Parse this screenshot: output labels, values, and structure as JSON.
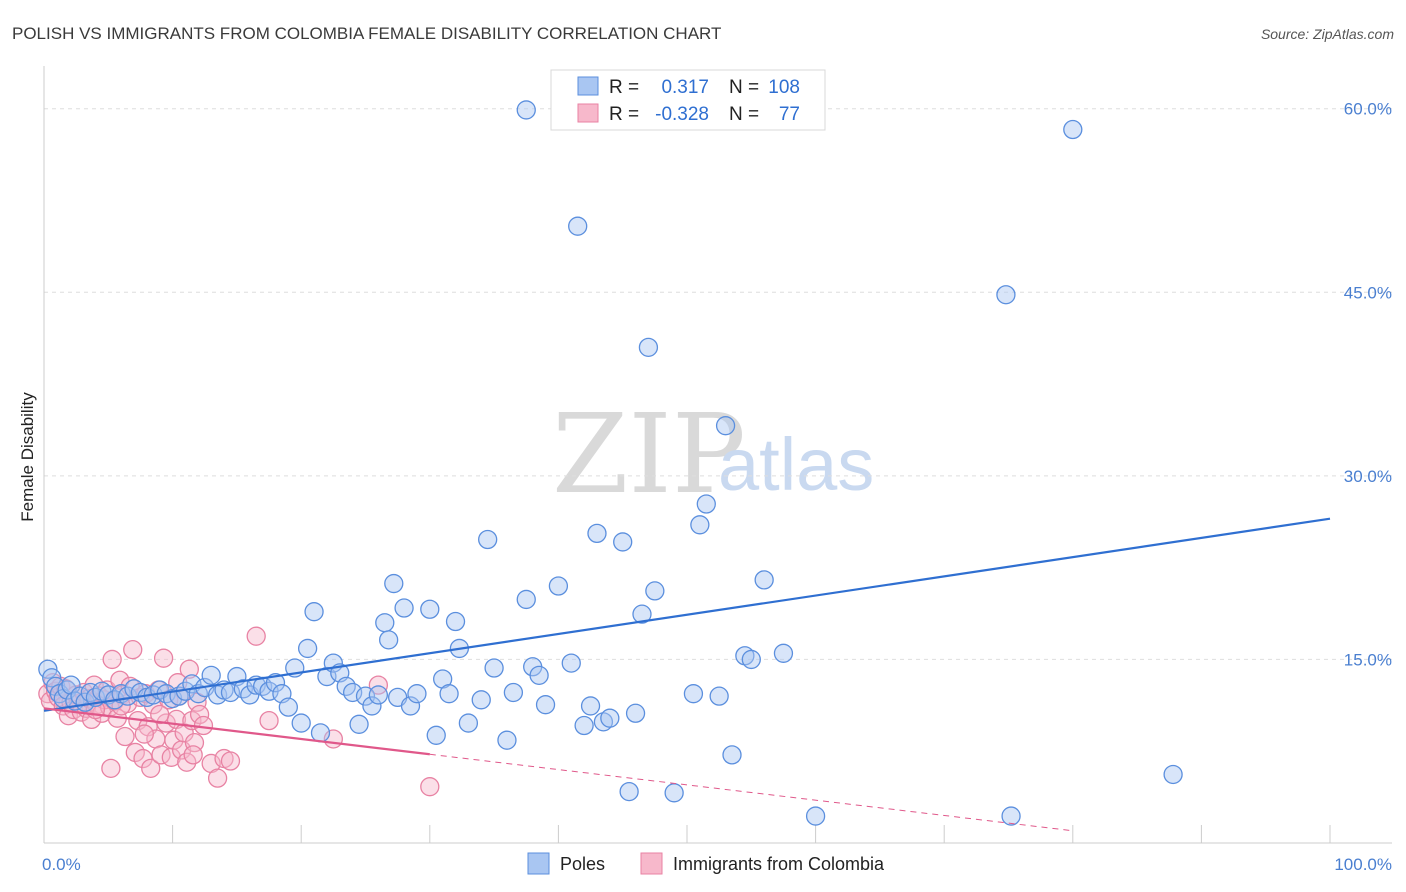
{
  "chart_data": {
    "type": "scatter",
    "title": "POLISH VS IMMIGRANTS FROM COLOMBIA FEMALE DISABILITY CORRELATION CHART",
    "source": "Source: ZipAtlas.com",
    "ylabel": "Female Disability",
    "xlim": [
      0,
      100
    ],
    "ylim": [
      0,
      63
    ],
    "x_ticks": [
      {
        "value": 0,
        "label": "0.0%"
      },
      {
        "value": 100,
        "label": "100.0%"
      }
    ],
    "y_ticks": [
      {
        "value": 15,
        "label": "15.0%"
      },
      {
        "value": 30,
        "label": "30.0%"
      },
      {
        "value": 45,
        "label": "45.0%"
      },
      {
        "value": 60,
        "label": "60.0%"
      }
    ],
    "grid": true,
    "legend_position": "bottom",
    "colors": {
      "poles_fill": "#a9c6f2",
      "poles_stroke": "#5b8fde",
      "poles_line": "#2f6fd1",
      "colombia_fill": "#f7b8cb",
      "colombia_stroke": "#e882a3",
      "colombia_line": "#e0588a",
      "grid": "#dedede",
      "axis": "#cccccc"
    },
    "stats": [
      {
        "series": "Poles",
        "r_label": "R =",
        "r_value": "0.317",
        "n_label": "N =",
        "n_value": "108"
      },
      {
        "series": "Immigrants from Colombia",
        "r_label": "R =",
        "r_value": "-0.328",
        "n_label": "N =",
        "n_value": "77"
      }
    ],
    "watermark": {
      "part1": "ZIP",
      "part2": "atlas"
    },
    "series": [
      {
        "name": "Poles",
        "trend": {
          "x": [
            0,
            100
          ],
          "y": [
            10.8,
            26.5
          ],
          "dashed_from": null
        },
        "points": [
          [
            0.3,
            14.2
          ],
          [
            0.6,
            13.5
          ],
          [
            0.9,
            12.8
          ],
          [
            1.2,
            12.2
          ],
          [
            1.5,
            11.8
          ],
          [
            1.8,
            12.5
          ],
          [
            2.1,
            12.9
          ],
          [
            2.4,
            11.6
          ],
          [
            2.8,
            12.0
          ],
          [
            3.2,
            11.5
          ],
          [
            3.6,
            12.3
          ],
          [
            4.0,
            11.9
          ],
          [
            4.5,
            12.4
          ],
          [
            5.0,
            12.1
          ],
          [
            5.5,
            11.7
          ],
          [
            6.0,
            12.2
          ],
          [
            6.5,
            12.0
          ],
          [
            7.0,
            12.6
          ],
          [
            7.5,
            12.3
          ],
          [
            8.0,
            11.9
          ],
          [
            8.5,
            12.1
          ],
          [
            9.0,
            12.5
          ],
          [
            9.5,
            12.2
          ],
          [
            10.0,
            11.8
          ],
          [
            10.5,
            12.0
          ],
          [
            11.0,
            12.4
          ],
          [
            11.5,
            13.0
          ],
          [
            12.0,
            12.2
          ],
          [
            12.5,
            12.7
          ],
          [
            13.0,
            13.7
          ],
          [
            13.5,
            12.1
          ],
          [
            14.0,
            12.5
          ],
          [
            14.5,
            12.3
          ],
          [
            15.0,
            13.6
          ],
          [
            15.5,
            12.6
          ],
          [
            16.0,
            12.1
          ],
          [
            16.5,
            12.9
          ],
          [
            17.0,
            12.8
          ],
          [
            17.5,
            12.4
          ],
          [
            18.0,
            13.1
          ],
          [
            18.5,
            12.2
          ],
          [
            19.0,
            11.1
          ],
          [
            19.5,
            14.3
          ],
          [
            20.0,
            9.8
          ],
          [
            20.5,
            15.9
          ],
          [
            21.0,
            18.9
          ],
          [
            21.5,
            9.0
          ],
          [
            22.0,
            13.6
          ],
          [
            22.5,
            14.7
          ],
          [
            23.0,
            13.9
          ],
          [
            23.5,
            12.8
          ],
          [
            24.0,
            12.3
          ],
          [
            24.5,
            9.7
          ],
          [
            25.0,
            12.0
          ],
          [
            25.5,
            11.2
          ],
          [
            26.0,
            12.1
          ],
          [
            26.5,
            18.0
          ],
          [
            26.8,
            16.6
          ],
          [
            27.2,
            21.2
          ],
          [
            27.5,
            11.9
          ],
          [
            28.0,
            19.2
          ],
          [
            28.5,
            11.2
          ],
          [
            29.0,
            12.2
          ],
          [
            30.0,
            19.1
          ],
          [
            30.5,
            8.8
          ],
          [
            31.0,
            13.4
          ],
          [
            31.5,
            12.2
          ],
          [
            32.0,
            18.1
          ],
          [
            32.3,
            15.9
          ],
          [
            33.0,
            9.8
          ],
          [
            34.0,
            11.7
          ],
          [
            34.5,
            24.8
          ],
          [
            35.0,
            14.3
          ],
          [
            36.0,
            8.4
          ],
          [
            36.5,
            12.3
          ],
          [
            37.5,
            19.9
          ],
          [
            38.0,
            14.4
          ],
          [
            38.5,
            13.7
          ],
          [
            39.0,
            11.3
          ],
          [
            40.0,
            21.0
          ],
          [
            41.0,
            14.7
          ],
          [
            41.5,
            50.4
          ],
          [
            42.0,
            9.6
          ],
          [
            42.5,
            11.2
          ],
          [
            43.0,
            25.3
          ],
          [
            43.5,
            9.9
          ],
          [
            44.0,
            10.2
          ],
          [
            45.0,
            24.6
          ],
          [
            45.5,
            4.2
          ],
          [
            46.0,
            10.6
          ],
          [
            46.5,
            18.7
          ],
          [
            47.0,
            40.5
          ],
          [
            47.5,
            20.6
          ],
          [
            49.0,
            4.1
          ],
          [
            50.5,
            12.2
          ],
          [
            51.0,
            26.0
          ],
          [
            51.5,
            27.7
          ],
          [
            52.5,
            12.0
          ],
          [
            53.0,
            34.1
          ],
          [
            53.5,
            7.2
          ],
          [
            54.5,
            15.3
          ],
          [
            55.0,
            15.0
          ],
          [
            56.0,
            21.5
          ],
          [
            57.5,
            15.5
          ],
          [
            60.0,
            2.2
          ],
          [
            37.5,
            59.9
          ],
          [
            80.0,
            58.3
          ],
          [
            74.8,
            44.8
          ],
          [
            87.8,
            5.6
          ],
          [
            75.2,
            2.2
          ]
        ]
      },
      {
        "name": "Immigrants from Colombia",
        "trend": {
          "x": [
            0,
            100
          ],
          "y": [
            11.0,
            -1.5
          ],
          "dashed_from": 30
        },
        "points": [
          [
            0.3,
            12.2
          ],
          [
            0.5,
            11.6
          ],
          [
            0.7,
            13.1
          ],
          [
            0.9,
            12.4
          ],
          [
            1.1,
            11.9
          ],
          [
            1.3,
            12.8
          ],
          [
            1.5,
            11.2
          ],
          [
            1.7,
            12.6
          ],
          [
            1.9,
            10.4
          ],
          [
            2.1,
            11.5
          ],
          [
            2.3,
            10.9
          ],
          [
            2.5,
            12.1
          ],
          [
            2.7,
            11.4
          ],
          [
            2.9,
            10.7
          ],
          [
            3.1,
            12.3
          ],
          [
            3.3,
            11.0
          ],
          [
            3.5,
            11.8
          ],
          [
            3.7,
            10.1
          ],
          [
            3.9,
            12.9
          ],
          [
            4.1,
            11.3
          ],
          [
            4.3,
            12.0
          ],
          [
            4.5,
            10.6
          ],
          [
            4.7,
            11.7
          ],
          [
            4.9,
            12.5
          ],
          [
            5.1,
            11.1
          ],
          [
            5.3,
            15.0
          ],
          [
            5.5,
            11.6
          ],
          [
            5.7,
            10.2
          ],
          [
            5.9,
            13.3
          ],
          [
            6.1,
            12.1
          ],
          [
            6.3,
            8.7
          ],
          [
            6.5,
            11.4
          ],
          [
            6.7,
            12.8
          ],
          [
            6.9,
            15.8
          ],
          [
            7.1,
            7.4
          ],
          [
            7.3,
            10.0
          ],
          [
            7.5,
            11.9
          ],
          [
            7.7,
            6.9
          ],
          [
            7.9,
            12.2
          ],
          [
            8.1,
            9.5
          ],
          [
            8.3,
            6.1
          ],
          [
            8.5,
            11.3
          ],
          [
            8.7,
            8.5
          ],
          [
            8.9,
            12.5
          ],
          [
            9.1,
            7.2
          ],
          [
            9.3,
            15.1
          ],
          [
            9.5,
            9.8
          ],
          [
            9.7,
            11.7
          ],
          [
            9.9,
            7.0
          ],
          [
            10.1,
            8.4
          ],
          [
            10.3,
            10.1
          ],
          [
            10.5,
            12.0
          ],
          [
            10.7,
            7.6
          ],
          [
            10.9,
            9.0
          ],
          [
            11.1,
            6.6
          ],
          [
            11.3,
            14.2
          ],
          [
            11.5,
            10.0
          ],
          [
            11.7,
            8.2
          ],
          [
            11.9,
            11.5
          ],
          [
            12.1,
            10.5
          ],
          [
            13.0,
            6.5
          ],
          [
            13.5,
            5.3
          ],
          [
            14.0,
            6.9
          ],
          [
            14.5,
            6.7
          ],
          [
            16.5,
            16.9
          ],
          [
            17.5,
            10.0
          ],
          [
            22.5,
            8.5
          ],
          [
            26.0,
            12.9
          ],
          [
            30.0,
            4.6
          ],
          [
            4.0,
            10.9
          ],
          [
            5.2,
            6.1
          ],
          [
            6.0,
            11.2
          ],
          [
            7.8,
            8.9
          ],
          [
            9.0,
            10.5
          ],
          [
            10.4,
            13.1
          ],
          [
            11.6,
            7.2
          ],
          [
            12.4,
            9.6
          ]
        ]
      }
    ]
  }
}
